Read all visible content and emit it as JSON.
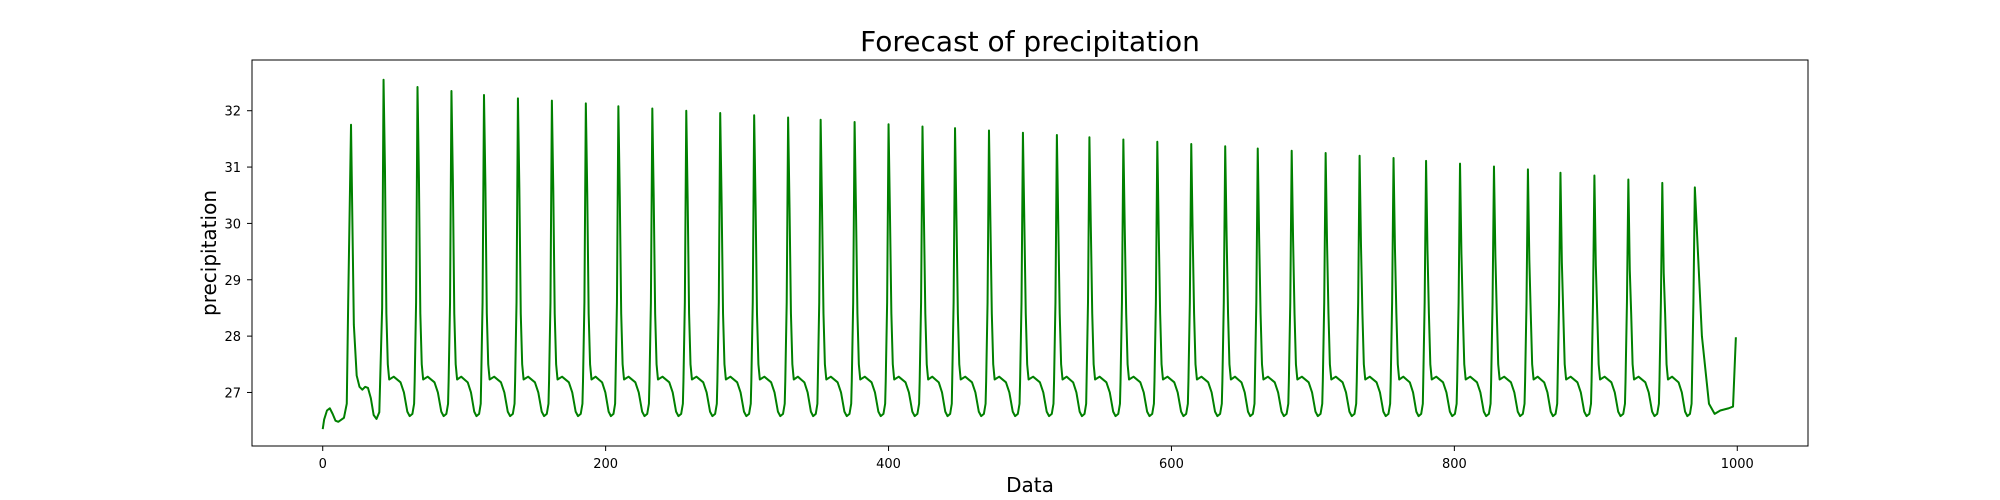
{
  "chart_data": {
    "type": "line",
    "title": "Forecast of precipitation",
    "xlabel": "Data",
    "ylabel": "precipitation",
    "xlim": [
      -50,
      1050
    ],
    "ylim": [
      26.05,
      32.9
    ],
    "xticks": [
      0,
      200,
      400,
      600,
      800,
      1000
    ],
    "yticks": [
      27,
      28,
      29,
      30,
      31,
      32
    ],
    "grid": false,
    "legend": false,
    "series": [
      {
        "color": "#008000",
        "points": [
          [
            0,
            26.35
          ],
          [
            1,
            26.52
          ],
          [
            3,
            26.68
          ],
          [
            5,
            26.72
          ],
          [
            7,
            26.62
          ],
          [
            9,
            26.5
          ],
          [
            11,
            26.48
          ],
          [
            15,
            26.55
          ],
          [
            17,
            26.8
          ],
          [
            18,
            28.6
          ],
          [
            20,
            31.75
          ],
          [
            22,
            28.2
          ],
          [
            24,
            27.3
          ],
          [
            26,
            27.1
          ],
          [
            28,
            27.05
          ],
          [
            30,
            27.1
          ],
          [
            32,
            27.08
          ],
          [
            34,
            26.9
          ],
          [
            36,
            26.6
          ],
          [
            38,
            26.53
          ],
          [
            40,
            26.65
          ],
          [
            42,
            28.5
          ],
          [
            43,
            32.55
          ]
        ],
        "peaks": [
          [
            43,
            32.55
          ],
          [
            67,
            32.42
          ],
          [
            91,
            32.35
          ],
          [
            114,
            32.28
          ],
          [
            138,
            32.22
          ],
          [
            162,
            32.18
          ],
          [
            186,
            32.13
          ],
          [
            209,
            32.08
          ],
          [
            233,
            32.04
          ],
          [
            257,
            32.0
          ],
          [
            281,
            31.96
          ],
          [
            305,
            31.92
          ],
          [
            329,
            31.88
          ],
          [
            352,
            31.84
          ],
          [
            376,
            31.8
          ],
          [
            400,
            31.76
          ],
          [
            424,
            31.72
          ],
          [
            447,
            31.69
          ],
          [
            471,
            31.65
          ],
          [
            495,
            31.61
          ],
          [
            519,
            31.57
          ],
          [
            542,
            31.53
          ],
          [
            566,
            31.49
          ],
          [
            590,
            31.45
          ],
          [
            614,
            31.41
          ],
          [
            638,
            31.37
          ],
          [
            661,
            31.33
          ],
          [
            685,
            31.29
          ],
          [
            709,
            31.25
          ],
          [
            733,
            31.2
          ],
          [
            757,
            31.16
          ],
          [
            780,
            31.11
          ],
          [
            804,
            31.06
          ],
          [
            828,
            31.01
          ],
          [
            852,
            30.96
          ],
          [
            875,
            30.9
          ],
          [
            899,
            30.85
          ],
          [
            923,
            30.78
          ],
          [
            947,
            30.72
          ],
          [
            970,
            30.64
          ]
        ],
        "trough": 26.58,
        "shoulder": 27.28,
        "end": [
          [
            975,
            28.0
          ],
          [
            980,
            26.8
          ],
          [
            984,
            26.62
          ],
          [
            988,
            26.68
          ],
          [
            994,
            26.72
          ],
          [
            997,
            26.75
          ],
          [
            999,
            27.98
          ]
        ]
      }
    ]
  }
}
